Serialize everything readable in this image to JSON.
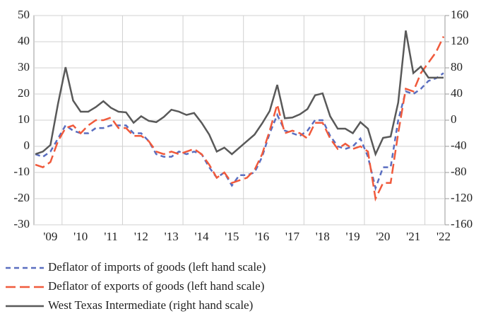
{
  "chart_data": {
    "type": "line",
    "categories": [
      null,
      null,
      "'09",
      null,
      null,
      null,
      "'10",
      null,
      null,
      null,
      "'11",
      null,
      null,
      null,
      "'12",
      null,
      null,
      null,
      "'13",
      null,
      null,
      null,
      "'14",
      null,
      null,
      null,
      "'15",
      null,
      null,
      null,
      "'16",
      null,
      null,
      null,
      "'17",
      null,
      null,
      null,
      "'18",
      null,
      null,
      null,
      "'19",
      null,
      null,
      null,
      "'20",
      null,
      null,
      null,
      "'21",
      null,
      null,
      null,
      "'22"
    ],
    "series": [
      {
        "name": "Deflator of imports of goods (left hand scale)",
        "color": "#5a6ec0",
        "dash": "short",
        "values": [
          -3,
          -4,
          -2,
          3,
          8,
          6,
          5,
          5,
          7,
          7,
          8,
          8,
          8,
          5,
          5,
          2,
          -3,
          -4,
          -4,
          -2,
          -3,
          -2,
          -3,
          -8,
          -12,
          -10,
          -15,
          -11,
          -11,
          -10,
          -4,
          5,
          12,
          6,
          5,
          4,
          6,
          10,
          10,
          4,
          0,
          -1,
          0,
          3,
          -4,
          -16,
          -8,
          -8,
          10,
          21,
          20,
          22,
          25,
          26,
          28
        ]
      },
      {
        "name": "Deflator of exports of goods (left hand scale)",
        "color": "#f05a3c",
        "dash": "long",
        "values": [
          -7,
          -8,
          -6,
          2,
          7,
          8,
          5,
          8,
          10,
          10,
          11,
          7,
          7,
          4,
          4,
          2,
          -2,
          -3,
          -2,
          -3,
          -2,
          -1,
          -3,
          -7,
          -12,
          -10,
          -14,
          -13,
          -12,
          -9,
          -3,
          6,
          16,
          5,
          6,
          5,
          3,
          9,
          9,
          3,
          -1,
          1,
          -1,
          0,
          -2,
          -20,
          -14,
          -14,
          5,
          22,
          21,
          28,
          32,
          36,
          42
        ]
      },
      {
        "name": "West Texas Intermediate (right hand scale)",
        "color": "#595959",
        "dash": "solid",
        "axis": "y2",
        "values": [
          -52,
          -48,
          -38,
          25,
          81,
          30,
          13,
          13,
          20,
          29,
          19,
          13,
          12,
          -4,
          6,
          -1,
          -3,
          5,
          16,
          13,
          8,
          11,
          -4,
          -22,
          -48,
          -42,
          -52,
          -42,
          -32,
          -22,
          -5,
          14,
          54,
          3,
          4,
          9,
          17,
          38,
          41,
          6,
          -13,
          -13,
          -20,
          -3,
          -13,
          -52,
          -27,
          -25,
          27,
          137,
          72,
          82,
          65,
          65,
          65
        ]
      }
    ],
    "ylim": [
      -30,
      50
    ],
    "yticks": [
      -30,
      -20,
      -10,
      0,
      10,
      20,
      30,
      40,
      50
    ],
    "y2lim": [
      -160,
      160
    ],
    "y2ticks": [
      -160,
      -120,
      -80,
      -40,
      0,
      40,
      80,
      120,
      160
    ],
    "grid": true,
    "legend": "bottom"
  }
}
